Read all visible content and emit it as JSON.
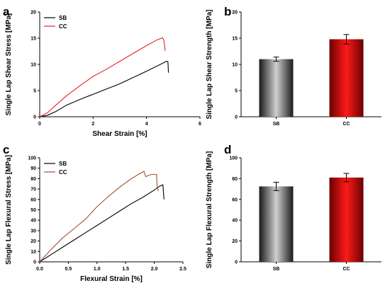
{
  "panels": [
    {
      "id": "a",
      "letter": "a",
      "chart_data": {
        "type": "line",
        "xlabel": "Shear Strain [%]",
        "ylabel": "Single Lap Shear Stress [MPa]",
        "xlim": [
          0,
          6
        ],
        "ylim": [
          0,
          20
        ],
        "xticks": [
          0,
          2,
          4,
          6
        ],
        "yticks": [
          0,
          5,
          10,
          15,
          20
        ],
        "legend": "top-left",
        "series": [
          {
            "name": "SB",
            "color": "#000000",
            "points": [
              [
                0,
                0
              ],
              [
                0.3,
                0.3
              ],
              [
                0.6,
                1.0
              ],
              [
                1.0,
                2.2
              ],
              [
                1.5,
                3.3
              ],
              [
                2.0,
                4.3
              ],
              [
                2.5,
                5.3
              ],
              [
                3.0,
                6.3
              ],
              [
                3.5,
                7.5
              ],
              [
                4.0,
                8.7
              ],
              [
                4.4,
                9.7
              ],
              [
                4.75,
                10.6
              ],
              [
                4.8,
                10.5
              ],
              [
                4.82,
                8.4
              ]
            ]
          },
          {
            "name": "CC",
            "color": "#e8202a",
            "points": [
              [
                0,
                0
              ],
              [
                0.3,
                0.8
              ],
              [
                0.6,
                2.2
              ],
              [
                1.0,
                4.0
              ],
              [
                1.5,
                5.9
              ],
              [
                2.0,
                7.7
              ],
              [
                2.5,
                9.1
              ],
              [
                3.0,
                10.6
              ],
              [
                3.5,
                12.1
              ],
              [
                4.0,
                13.6
              ],
              [
                4.4,
                14.7
              ],
              [
                4.6,
                15.1
              ],
              [
                4.65,
                14.6
              ],
              [
                4.7,
                12.6
              ]
            ]
          }
        ]
      }
    },
    {
      "id": "b",
      "letter": "b",
      "chart_data": {
        "type": "bar",
        "ylabel": "Single Lap Shear Strength [MPa]",
        "categories": [
          "SB",
          "CC"
        ],
        "values": [
          11.0,
          14.8
        ],
        "errors": [
          0.4,
          0.9
        ],
        "colors": [
          "#3a3a3a",
          "#e00000"
        ],
        "ylim": [
          0,
          20
        ],
        "yticks": [
          0,
          5,
          10,
          15,
          20
        ]
      }
    },
    {
      "id": "c",
      "letter": "c",
      "chart_data": {
        "type": "line",
        "xlabel": "Flexural Strain [%]",
        "ylabel": "Single Lap Flexural Stress [MPa]",
        "xlim": [
          0,
          2.5
        ],
        "ylim": [
          0,
          100
        ],
        "xticks": [
          0.0,
          0.5,
          1.0,
          1.5,
          2.0,
          2.5
        ],
        "xtick_labels": [
          "0.0",
          "0.5",
          "1.0",
          "1.5",
          "2.0",
          "2.5"
        ],
        "yticks": [
          0,
          10,
          20,
          30,
          40,
          50,
          60,
          70,
          80,
          90,
          100
        ],
        "legend": "top-left",
        "series": [
          {
            "name": "SB",
            "color": "#000000",
            "points": [
              [
                0,
                0
              ],
              [
                0.2,
                7
              ],
              [
                0.4,
                14
              ],
              [
                0.6,
                21
              ],
              [
                0.8,
                28
              ],
              [
                1.0,
                35
              ],
              [
                1.2,
                42
              ],
              [
                1.4,
                49
              ],
              [
                1.6,
                56
              ],
              [
                1.8,
                62
              ],
              [
                2.0,
                69
              ],
              [
                2.1,
                73
              ],
              [
                2.15,
                74
              ],
              [
                2.17,
                60
              ]
            ]
          },
          {
            "name": "CC",
            "color": "#a0522d",
            "points": [
              [
                0,
                0
              ],
              [
                0.2,
                12
              ],
              [
                0.4,
                23
              ],
              [
                0.6,
                32
              ],
              [
                0.8,
                41
              ],
              [
                1.0,
                53
              ],
              [
                1.2,
                63
              ],
              [
                1.4,
                72
              ],
              [
                1.6,
                80
              ],
              [
                1.75,
                85
              ],
              [
                1.82,
                87
              ],
              [
                1.85,
                82
              ],
              [
                1.95,
                84
              ],
              [
                2.04,
                84
              ],
              [
                2.05,
                72
              ],
              [
                2.07,
                68
              ]
            ]
          }
        ]
      }
    },
    {
      "id": "d",
      "letter": "d",
      "chart_data": {
        "type": "bar",
        "ylabel": "Single Lap Flexural Strength [MPa]",
        "categories": [
          "SB",
          "CC"
        ],
        "values": [
          72.5,
          81.0
        ],
        "errors": [
          4,
          4
        ],
        "colors": [
          "#3a3a3a",
          "#e00000"
        ],
        "ylim": [
          0,
          100
        ],
        "yticks": [
          0,
          20,
          40,
          60,
          80,
          100
        ]
      }
    }
  ]
}
